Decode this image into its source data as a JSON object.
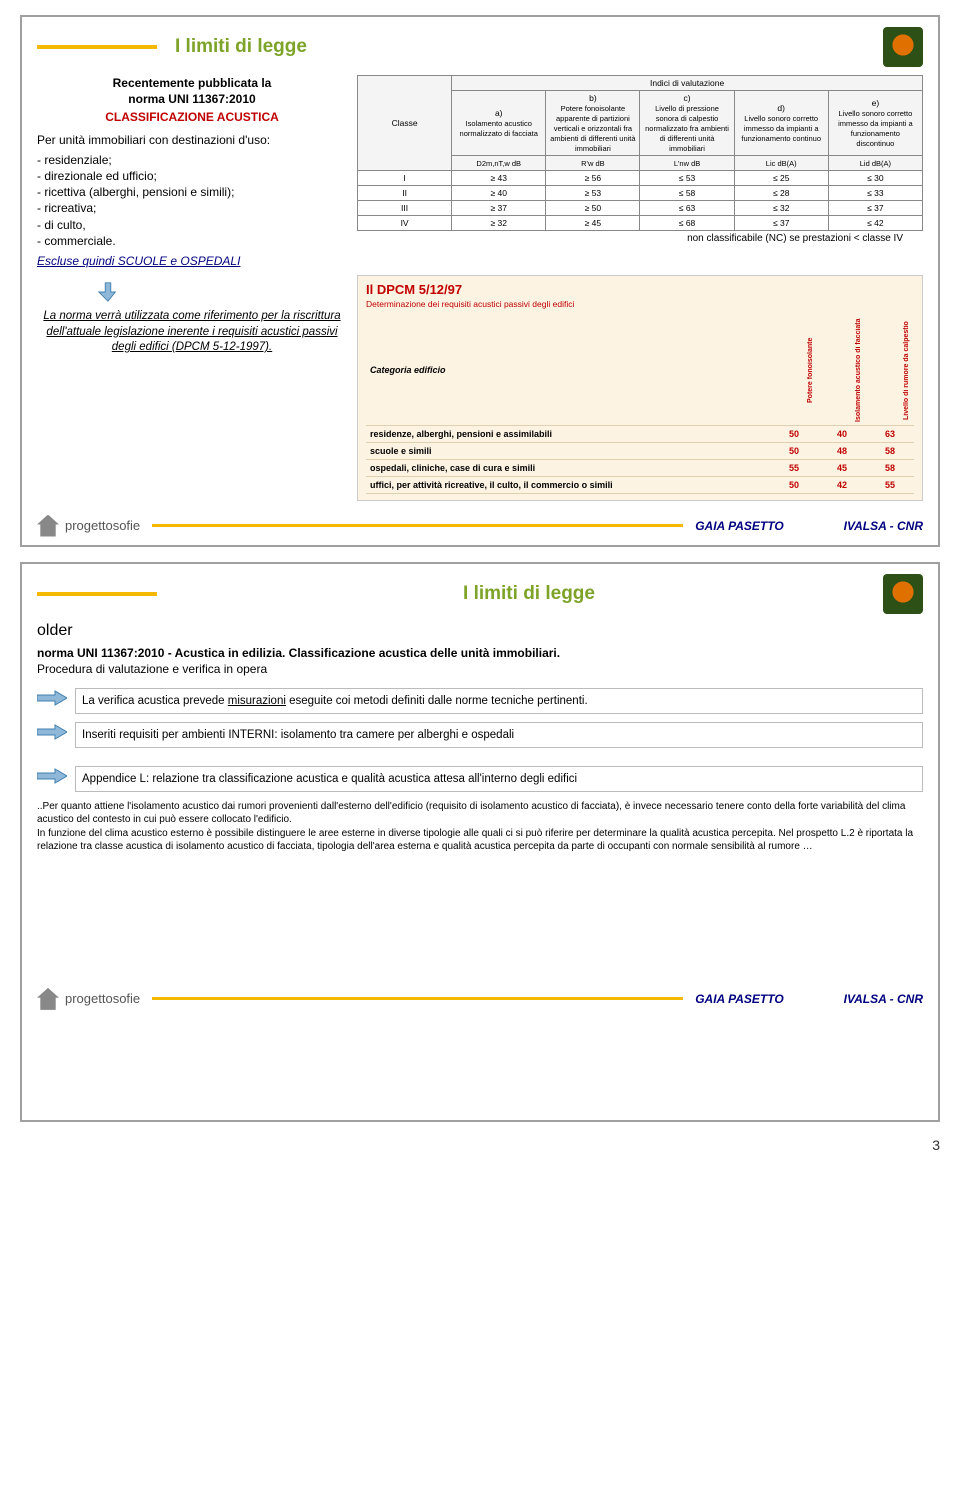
{
  "slide1": {
    "title": "I limiti di legge",
    "recent1": "Recentemente pubblicata la",
    "recent2": "norma UNI 11367:2010",
    "classif": "CLASSIFICAZIONE ACUSTICA",
    "usoIntro": "Per unità immobiliari con destinazioni d'uso:",
    "uso": [
      "- residenziale;",
      "- direzionale ed ufficio;",
      "- ricettiva (alberghi, pensioni e simili);",
      "- ricreativa;",
      "- di culto,",
      "- commerciale."
    ],
    "escluse": "Escluse quindi SCUOLE e OSPEDALI",
    "valtable": {
      "header_top": "Indici di valutazione",
      "cols": [
        {
          "let": "a)",
          "desc": "Isolamento acustico normalizzato di facciata",
          "unit": "D2m,nT,w dB"
        },
        {
          "let": "b)",
          "desc": "Potere fonoisolante apparente di partizioni verticali e orizzontali fra ambienti di differenti unità immobiliari",
          "unit": "R'w dB"
        },
        {
          "let": "c)",
          "desc": "Livello di pressione sonora di calpestio normalizzato fra ambienti di differenti unità immobiliari",
          "unit": "L'nw dB"
        },
        {
          "let": "d)",
          "desc": "Livello sonoro corretto immesso da impianti a funzionamento continuo",
          "unit": "Lic dB(A)"
        },
        {
          "let": "e)",
          "desc": "Livello sonoro corretto immesso da impianti a funzionamento discontinuo",
          "unit": "Lid dB(A)"
        }
      ],
      "classe": "Classe",
      "rows": [
        {
          "c": "I",
          "v": [
            "≥ 43",
            "≥ 56",
            "≤ 53",
            "≤ 25",
            "≤ 30"
          ]
        },
        {
          "c": "II",
          "v": [
            "≥ 40",
            "≥ 53",
            "≤ 58",
            "≤ 28",
            "≤ 33"
          ]
        },
        {
          "c": "III",
          "v": [
            "≥ 37",
            "≥ 50",
            "≤ 63",
            "≤ 32",
            "≤ 37"
          ]
        },
        {
          "c": "IV",
          "v": [
            "≥ 32",
            "≥ 45",
            "≤ 68",
            "≤ 37",
            "≤ 42"
          ]
        }
      ]
    },
    "nc_label": "non classificabile (NC) se prestazioni < classe IV",
    "normaBox": "La norma verrà utilizzata come riferimento per la riscrittura dell'attuale legislazione inerente i requisiti acustici passivi degli edifici (DPCM 5-12-1997).",
    "dpcm": {
      "title": "Il DPCM 5/12/97",
      "sub": "Determinazione dei requisiti acustici passivi degli edifici",
      "cat_label": "Categoria edificio",
      "heads": [
        "Potere fonoisolante",
        "Isolamento acustico di facciata",
        "Livello di rumore da calpestio"
      ],
      "rows": [
        {
          "label": "residenze, alberghi, pensioni e assimilabili",
          "v": [
            "50",
            "40",
            "63"
          ]
        },
        {
          "label": "scuole e simili",
          "v": [
            "50",
            "48",
            "58"
          ]
        },
        {
          "label": "ospedali, cliniche, case di cura e simili",
          "v": [
            "55",
            "45",
            "58"
          ]
        },
        {
          "label": "uffici, per attività ricreative, il culto, il commercio o simili",
          "v": [
            "50",
            "42",
            "55"
          ]
        }
      ]
    }
  },
  "slide2": {
    "title": "I limiti di legge",
    "intro": "norma UNI 11367:2010 - Acustica in edilizia. Classificazione acustica delle unità immobiliari.",
    "sub": "Procedura di valutazione e verifica in opera",
    "items": [
      "La verifica acustica prevede misurazioni eseguite coi metodi definiti dalle norme tecniche pertinenti.",
      "Inseriti requisiti per ambienti INTERNI: isolamento tra camere per alberghi e ospedali",
      "Appendice L: relazione tra classificazione acustica e qualità acustica attesa all'interno degli edifici"
    ],
    "fine": "..Per quanto attiene l'isolamento acustico dai rumori provenienti dall'esterno dell'edificio (requisito di isolamento acustico di facciata), è invece necessario tenere conto della forte variabilità del clima acustico del contesto in cui può essere collocato l'edificio.\nIn funzione del clima acustico esterno è possibile distinguere le aree esterne in diverse tipologie alle quali ci si può riferire per determinare la qualità acustica percepita. Nel prospetto L.2 è riportata la relazione tra classe acustica di isolamento acustico di facciata, tipologia dell'area esterna e qualità acustica percepita da parte di occupanti con normale sensibilità al rumore …"
  },
  "footer": {
    "project": "progettosofie",
    "center": "GAIA PASETTO",
    "right": "IVALSA - CNR"
  },
  "pageNum": "3"
}
